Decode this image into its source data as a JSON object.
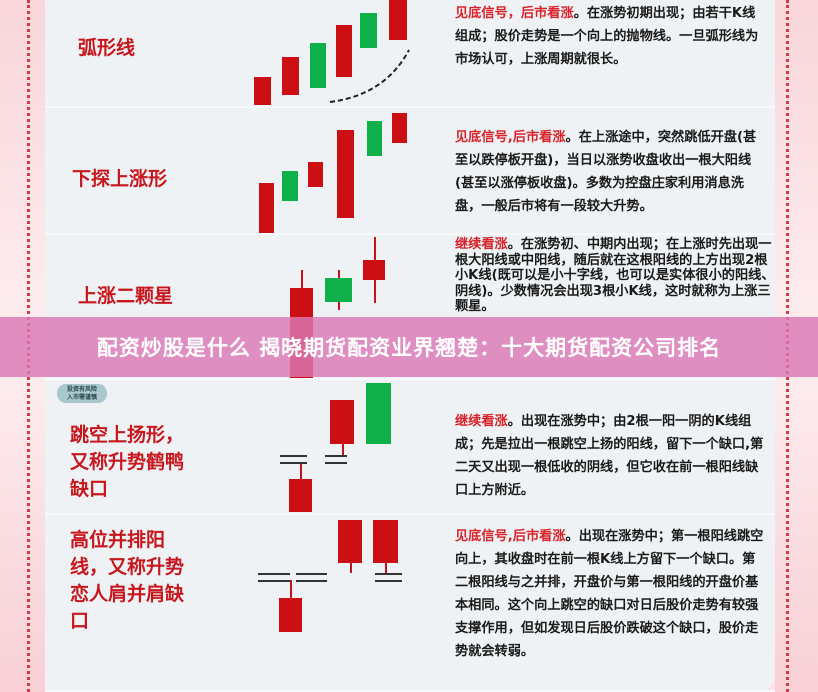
{
  "banner": {
    "title": "配资炒股是什么 揭晓期货配资业界翘楚：十大期货配资公司排名"
  },
  "badge": {
    "line1": "投资有风险",
    "line2": "入市需谨慎"
  },
  "colors": {
    "bullish_candle": "#cc0f14",
    "bearish_candle": "#0fb04a",
    "label": "#c8161d",
    "highlight": "#d8232a",
    "banner": "#da78b6"
  },
  "patterns": [
    {
      "name": "弧形线",
      "highlight": "见底信号，后市看涨",
      "text": "。在涨势初期出现；由若干K线组成；股价走势是一个向上的抛物线。一旦弧形线为市场认可，上涨周期就很长。"
    },
    {
      "name": "下探上涨形",
      "highlight": "见底信号,后市看涨",
      "text": "。在上涨途中，突然跳低开盘(甚至以跌停板开盘)，当日以涨势收盘收出一根大阳线(甚至以涨停板收盘)。多数为控盘庄家利用消息洗盘，一般后市将有一段较大升势。"
    },
    {
      "name": "上涨二颗星",
      "highlight": "继续看涨",
      "text": "。在涨势初、中期内出现；在上涨时先出现一根大阳线或中阳线，随后就在这根阳线的上方出现2根小K线(既可以是小十字线，也可以是实体很小的阳线、阴线)。少数情况会出现3根小K线，这时就称为上涨三颗星。"
    },
    {
      "name": "跳空上扬形，又称升势鹤鸭缺口",
      "highlight": "继续看涨",
      "text": "。出现在涨势中；由2根一阳一阴的K线组成；先是拉出一根跳空上扬的阳线，留下一个缺口,第二天又出现一根低收的阴线，但它收在前一根阳线缺口上方附近。"
    },
    {
      "name": "高位并排阳线，又称升势恋人肩并肩缺口",
      "highlight": "见底信号,后市看涨",
      "text": "。出现在涨势中；第一根阳线跳空向上，其收盘时在前一根K线上方留下一个缺口。第二根阳线与之并排，开盘价与第一根阳线的开盘价基本相同。这个向上跳空的缺口对日后股价走势有较强支撑作用，但如发现日后股价跌破这个缺口，股价走势就会转弱。"
    }
  ]
}
